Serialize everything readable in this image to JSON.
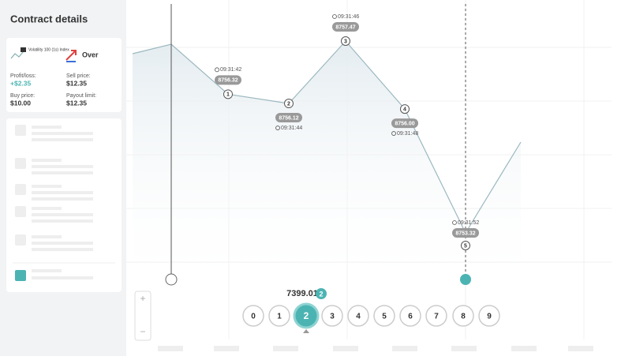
{
  "sidebar": {
    "title": "Contract details",
    "contract": {
      "underlying": "Volatility 100 (1s) Index",
      "type": "Over"
    },
    "fields": [
      {
        "label": "Profit/loss:",
        "value": "+$2.35"
      },
      {
        "label": "Sell price:",
        "value": "$12.35"
      },
      {
        "label": "Buy price:",
        "value": "$10.00"
      },
      {
        "label": "Payout limit:",
        "value": "$12.35"
      }
    ]
  },
  "chart": {
    "ticks": [
      {
        "index": "1",
        "time": "09:31:42",
        "price": "8756.32"
      },
      {
        "index": "2",
        "time": "09:31:44",
        "price": "8756.12"
      },
      {
        "index": "3",
        "time": "09:31:46",
        "price": "8757.47"
      },
      {
        "index": "4",
        "time": "09:31:48",
        "price": "8756.00"
      },
      {
        "index": "5",
        "time": "09:31:52",
        "price": "8753.32"
      }
    ]
  },
  "digits": {
    "spot": "7399.01",
    "selected": "2",
    "options": [
      "0",
      "1",
      "2",
      "3",
      "4",
      "5",
      "6",
      "7",
      "8",
      "9"
    ]
  }
}
